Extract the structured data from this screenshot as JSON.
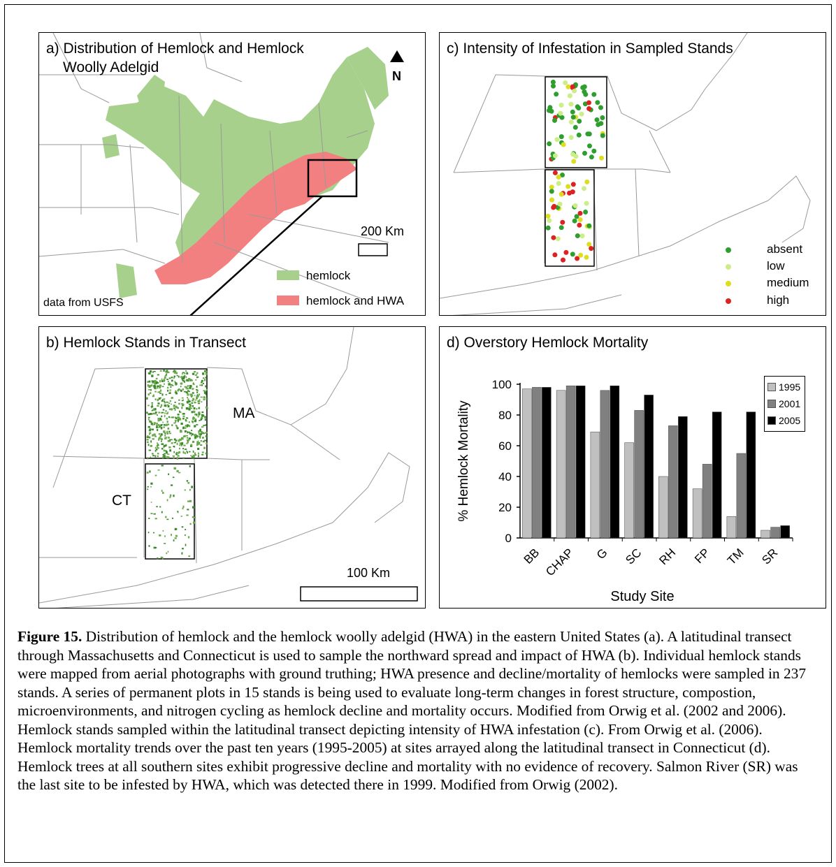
{
  "panels": {
    "a": {
      "title_line1": "a) Distribution of Hemlock and Hemlock",
      "title_line2": "Woolly Adelgid",
      "north_label": "N",
      "scale_label": "200 Km",
      "source": "data from USFS",
      "legend": [
        {
          "label": "hemlock",
          "color": "#a8d08d"
        },
        {
          "label": "hemlock and HWA",
          "color": "#f28080"
        }
      ]
    },
    "b": {
      "title": "b) Hemlock Stands in Transect",
      "state_ma": "MA",
      "state_ct": "CT",
      "scale_label": "100 Km"
    },
    "c": {
      "title": "c) Intensity of Infestation in Sampled Stands",
      "legend": [
        {
          "label": "absent",
          "color": "#2e9e2e"
        },
        {
          "label": "low",
          "color": "#ccee88"
        },
        {
          "label": "medium",
          "color": "#dddd22"
        },
        {
          "label": "high",
          "color": "#dd2222"
        }
      ]
    },
    "d": {
      "title": "d) Overstory Hemlock Mortality"
    }
  },
  "chart_data": {
    "type": "bar",
    "title": "d) Overstory Hemlock Mortality",
    "xlabel": "Study Site",
    "ylabel": "% Hemlock Mortality",
    "categories": [
      "BB",
      "CHAP",
      "G",
      "SC",
      "RH",
      "FP",
      "TM",
      "SR"
    ],
    "ylim": [
      0,
      100
    ],
    "yticks": [
      0,
      20,
      40,
      60,
      80,
      100
    ],
    "legend_position": "top-right",
    "series": [
      {
        "name": "1995",
        "color": "#c0c0c0",
        "values": [
          97,
          96,
          69,
          62,
          40,
          32,
          14,
          5
        ]
      },
      {
        "name": "2001",
        "color": "#808080",
        "values": [
          98,
          99,
          96,
          83,
          73,
          48,
          55,
          7
        ]
      },
      {
        "name": "2005",
        "color": "#000000",
        "values": [
          98,
          99,
          99,
          93,
          79,
          82,
          82,
          8
        ]
      }
    ]
  },
  "caption": {
    "label": "Figure 15.",
    "text": " Distribution of hemlock and the hemlock woolly adelgid (HWA) in the eastern United States (a). A latitudinal transect through Massachusetts and Connecticut is used to sample the northward spread and impact of HWA (b).  Individual hemlock stands were mapped from aerial photographs with ground truthing; HWA presence and decline/mortality of hemlocks were sampled in 237 stands.  A series of permanent plots in 15 stands is being used to evaluate long-term changes in forest structure, compostion, microenvironments, and nitrogen cycling as hemlock decline and mortality occurs.  Modified from Orwig et al. (2002 and 2006).   Hemlock stands sampled within the latitudinal transect depicting intensity of HWA infestation (c).  From Orwig et al. (2006).  Hemlock mortality trends over the past ten years (1995-2005) at sites arrayed along the latitudinal transect in Connecticut (d).  Hemlock trees at all southern sites exhibit progressive decline and mortality with no evidence of recovery.  Salmon River (SR) was the last site to be infested by HWA, which was detected there in 1999.  Modified from Orwig (2002)."
  }
}
